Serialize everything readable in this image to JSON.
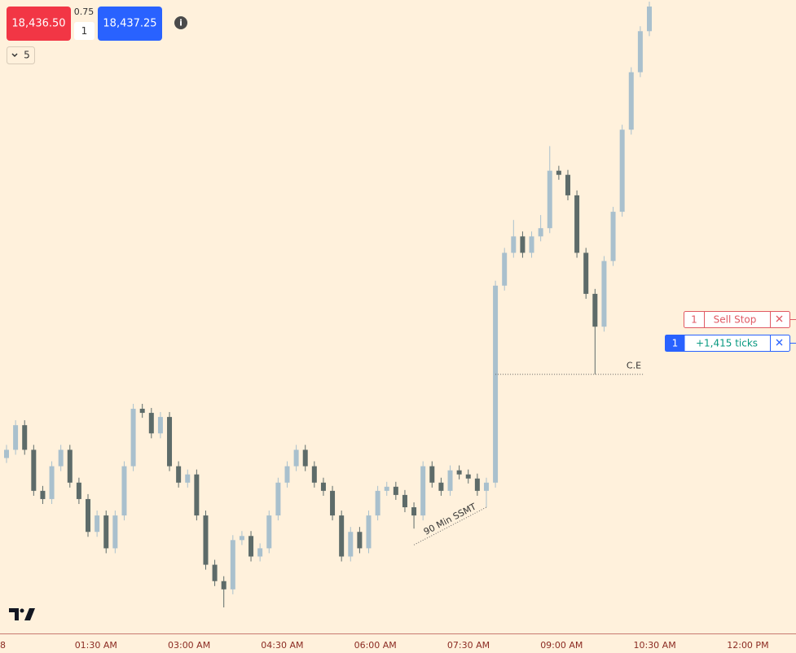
{
  "toolbar": {
    "sell_price": "18,436.50",
    "spread": "0.75",
    "quantity": "1",
    "buy_price": "18,437.25",
    "interval": "5"
  },
  "orders": [
    {
      "quantity": "1",
      "label": "Sell Stop"
    },
    {
      "quantity": "1",
      "label": "+1,415 ticks"
    }
  ],
  "chart_data": {
    "type": "candlestick",
    "up_color": "#a9c0cd",
    "down_color": "#5d6b69",
    "annotations": [
      "C.E",
      "90 Min SSMT"
    ],
    "x_tick_labels": [
      "8",
      "01:30 AM",
      "03:00 AM",
      "04:30 AM",
      "06:00 AM",
      "07:30 AM",
      "09:00 AM",
      "10:30 AM",
      "12:00 PM"
    ],
    "ohlc": [
      [
        18161.5,
        18169.5,
        18158.5,
        18166.5
      ],
      [
        18166.5,
        18184.5,
        18163.5,
        18181.5
      ],
      [
        18181.5,
        18184.5,
        18163.5,
        18166.5
      ],
      [
        18166.5,
        18169.5,
        18138.5,
        18141.5
      ],
      [
        18141.5,
        18144.5,
        18133.5,
        18136.5
      ],
      [
        18136.5,
        18159.5,
        18133.5,
        18156.5
      ],
      [
        18156.5,
        18169.5,
        18153.5,
        18166.5
      ],
      [
        18166.5,
        18169.5,
        18143.5,
        18146.5
      ],
      [
        18146.5,
        18149.5,
        18133.5,
        18136.5
      ],
      [
        18136.5,
        18139.5,
        18113.5,
        18116.5
      ],
      [
        18116.5,
        18129.5,
        18113.5,
        18126.5
      ],
      [
        18126.5,
        18129.5,
        18103.5,
        18106.5
      ],
      [
        18106.5,
        18129.5,
        18103.5,
        18126.5
      ],
      [
        18126.5,
        18159.5,
        18123.5,
        18156.5
      ],
      [
        18156.5,
        18194.5,
        18153.5,
        18191.5
      ],
      [
        18191.5,
        18194.5,
        18186,
        18189
      ],
      [
        18189,
        18192,
        18173.5,
        18176.5
      ],
      [
        18176.5,
        18189.5,
        18173.5,
        18186.5
      ],
      [
        18186.5,
        18189.5,
        18153.5,
        18156.5
      ],
      [
        18156.5,
        18159.5,
        18143.5,
        18146.5
      ],
      [
        18146.5,
        18154.5,
        18143.5,
        18151.5
      ],
      [
        18151.5,
        18154.5,
        18123.5,
        18126.5
      ],
      [
        18126.5,
        18129.5,
        18093.5,
        18096.5
      ],
      [
        18096.5,
        18099.5,
        18083.5,
        18086.5
      ],
      [
        18086.5,
        18089.5,
        18070.5,
        18081.5
      ],
      [
        18081.5,
        18114.5,
        18078.5,
        18111.5
      ],
      [
        18111.5,
        18117,
        18108.5,
        18114
      ],
      [
        18114,
        18117,
        18098.5,
        18101.5
      ],
      [
        18101.5,
        18109.5,
        18098.5,
        18106.5
      ],
      [
        18106.5,
        18129.5,
        18103.5,
        18126.5
      ],
      [
        18126.5,
        18149.5,
        18123.5,
        18146.5
      ],
      [
        18146.5,
        18159.5,
        18143.5,
        18156.5
      ],
      [
        18156.5,
        18169.5,
        18153.5,
        18166.5
      ],
      [
        18166.5,
        18169.5,
        18153.5,
        18156.5
      ],
      [
        18156.5,
        18159.5,
        18143.5,
        18146.5
      ],
      [
        18146.5,
        18149.5,
        18138.5,
        18141.5
      ],
      [
        18141.5,
        18144.5,
        18123.5,
        18126.5
      ],
      [
        18126.5,
        18129.5,
        18098.5,
        18101.5
      ],
      [
        18101.5,
        18119.5,
        18098.5,
        18116.5
      ],
      [
        18116.5,
        18119.5,
        18103.5,
        18106.5
      ],
      [
        18106.5,
        18129.5,
        18103.5,
        18126.5
      ],
      [
        18126.5,
        18144.5,
        18123.5,
        18141.5
      ],
      [
        18141.5,
        18147,
        18138.5,
        18144
      ],
      [
        18144,
        18147,
        18136,
        18139
      ],
      [
        18139,
        18142,
        18128.5,
        18131.5
      ],
      [
        18131.5,
        18134.5,
        18118.5,
        18126.5
      ],
      [
        18126.5,
        18159.5,
        18123.5,
        18156.5
      ],
      [
        18156.5,
        18159.5,
        18143.5,
        18146.5
      ],
      [
        18146.5,
        18149.5,
        18138.5,
        18141.5
      ],
      [
        18141.5,
        18157,
        18138.5,
        18154
      ],
      [
        18154,
        18157,
        18148.5,
        18151.5
      ],
      [
        18151.5,
        18154.5,
        18146,
        18149
      ],
      [
        18149,
        18152,
        18138.5,
        18141.5
      ],
      [
        18141.5,
        18149.5,
        18131.5,
        18146.5
      ],
      [
        18146.5,
        18269.5,
        18143.5,
        18266.5
      ],
      [
        18266.5,
        18289.5,
        18263.5,
        18286.5
      ],
      [
        18286.5,
        18306.5,
        18283.5,
        18296.5
      ],
      [
        18296.5,
        18299.5,
        18283.5,
        18286.5
      ],
      [
        18286.5,
        18299.5,
        18283.5,
        18296.5
      ],
      [
        18296.5,
        18309.5,
        18293.5,
        18301.5
      ],
      [
        18301.5,
        18351.5,
        18298.5,
        18336.5
      ],
      [
        18336.5,
        18339.5,
        18331,
        18334
      ],
      [
        18334,
        18337,
        18318.5,
        18321.5
      ],
      [
        18321.5,
        18324.5,
        18283.5,
        18286.5
      ],
      [
        18286.5,
        18289.5,
        18258.5,
        18261.5
      ],
      [
        18261.5,
        18264.5,
        18212.5,
        18241.5
      ],
      [
        18241.5,
        18284.5,
        18238.5,
        18281.5
      ],
      [
        18281.5,
        18314.5,
        18278.5,
        18311.5
      ],
      [
        18311.5,
        18364.5,
        18308.5,
        18361.5
      ],
      [
        18361.5,
        18399.5,
        18358.5,
        18396.5
      ],
      [
        18396.5,
        18424.5,
        18393.5,
        18421.5
      ],
      [
        18421.5,
        18439.5,
        18418.5,
        18436.5
      ]
    ]
  }
}
